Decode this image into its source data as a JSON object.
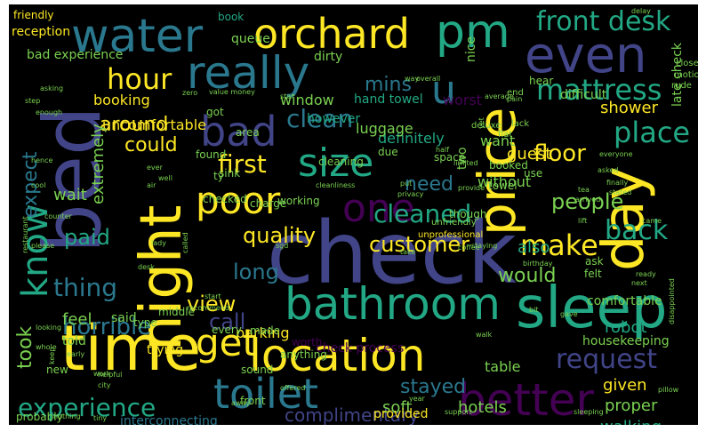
{
  "palette": {
    "background": "#000000",
    "yellow": "#fde725",
    "lightgreen": "#7ad151",
    "green": "#22a884",
    "teal": "#2a788e",
    "blue": "#414487",
    "purple": "#440154"
  },
  "words": [
    {
      "text": "check",
      "color": "#414487"
    },
    {
      "text": "bed",
      "color": "#414487"
    },
    {
      "text": "time",
      "color": "#fde725"
    },
    {
      "text": "night",
      "color": "#fde725"
    },
    {
      "text": "sleep",
      "color": "#22a884"
    },
    {
      "text": "day",
      "color": "#fde725"
    },
    {
      "text": "price",
      "color": "#fde725"
    },
    {
      "text": "bathroom",
      "color": "#22a884"
    },
    {
      "text": "location",
      "color": "#fde725"
    },
    {
      "text": "better",
      "color": "#440154"
    },
    {
      "text": "toilet",
      "color": "#2a788e"
    },
    {
      "text": "even",
      "color": "#414487"
    },
    {
      "text": "water",
      "color": "#2a788e"
    },
    {
      "text": "orchard",
      "color": "#fde725"
    },
    {
      "text": "really",
      "color": "#2a788e"
    },
    {
      "text": "pm",
      "color": "#22a884"
    },
    {
      "text": "bad",
      "color": "#414487"
    },
    {
      "text": "poor",
      "color": "#fde725"
    },
    {
      "text": "size",
      "color": "#22a884"
    },
    {
      "text": "one",
      "color": "#440154"
    },
    {
      "text": "get",
      "color": "#fde725"
    },
    {
      "text": "u",
      "color": "#2a788e"
    },
    {
      "text": "know",
      "color": "#22a884"
    },
    {
      "text": "front desk",
      "color": "#22a884"
    },
    {
      "text": "mattress",
      "color": "#22a884"
    },
    {
      "text": "hour",
      "color": "#fde725"
    },
    {
      "text": "place",
      "color": "#22a884"
    },
    {
      "text": "make",
      "color": "#fde725"
    },
    {
      "text": "back",
      "color": "#22a884"
    },
    {
      "text": "experience",
      "color": "#22a884"
    },
    {
      "text": "request",
      "color": "#414487"
    },
    {
      "text": "first",
      "color": "#fde725"
    },
    {
      "text": "cleaned",
      "color": "#22a884"
    },
    {
      "text": "clean",
      "color": "#2a788e"
    },
    {
      "text": "horrible",
      "color": "#2a788e"
    },
    {
      "text": "thing",
      "color": "#2a788e"
    },
    {
      "text": "customer",
      "color": "#fde725"
    },
    {
      "text": "floor",
      "color": "#fde725"
    },
    {
      "text": "quality",
      "color": "#fde725"
    },
    {
      "text": "long",
      "color": "#2a788e"
    },
    {
      "text": "paid",
      "color": "#22a884"
    },
    {
      "text": "call",
      "color": "#414487"
    },
    {
      "text": "would",
      "color": "#7ad151"
    },
    {
      "text": "view",
      "color": "#fde725"
    },
    {
      "text": "people",
      "color": "#7ad151"
    },
    {
      "text": "stayed",
      "color": "#2a788e"
    },
    {
      "text": "complimentary",
      "color": "#414487"
    },
    {
      "text": "around",
      "color": "#fde725"
    },
    {
      "text": "could",
      "color": "#fde725"
    },
    {
      "text": "expect",
      "color": "#2a788e"
    },
    {
      "text": "need",
      "color": "#2a788e"
    },
    {
      "text": "mins",
      "color": "#2a788e"
    },
    {
      "text": "took",
      "color": "#7ad151"
    },
    {
      "text": "also",
      "color": "#22a884"
    },
    {
      "text": "soft",
      "color": "#7ad151"
    },
    {
      "text": "proper",
      "color": "#7ad151"
    },
    {
      "text": "walking",
      "color": "#22a884"
    },
    {
      "text": "given",
      "color": "#fde725"
    },
    {
      "text": "hotels",
      "color": "#7ad151"
    },
    {
      "text": "robot",
      "color": "#22a884"
    },
    {
      "text": "definitely",
      "color": "#22a884"
    },
    {
      "text": "guest",
      "color": "#fde725"
    },
    {
      "text": "shower",
      "color": "#fde725"
    },
    {
      "text": "wait",
      "color": "#7ad151"
    },
    {
      "text": "luggage",
      "color": "#7ad151"
    },
    {
      "text": "booking",
      "color": "#fde725"
    },
    {
      "text": "uncomfortable",
      "color": "#fde725"
    },
    {
      "text": "bad experience",
      "color": "#7ad151"
    },
    {
      "text": "window",
      "color": "#7ad151"
    },
    {
      "text": "hand towel",
      "color": "#22a884"
    },
    {
      "text": "worst",
      "color": "#440154"
    },
    {
      "text": "however",
      "color": "#22a884"
    },
    {
      "text": "parking",
      "color": "#fde725"
    },
    {
      "text": "feel",
      "color": "#7ad151"
    },
    {
      "text": "said",
      "color": "#7ad151"
    },
    {
      "text": "told",
      "color": "#7ad151"
    },
    {
      "text": "extremely",
      "color": "#7ad151"
    },
    {
      "text": "want",
      "color": "#7ad151"
    },
    {
      "text": "two",
      "color": "#7ad151"
    },
    {
      "text": "without",
      "color": "#7ad151"
    },
    {
      "text": "interconnecting",
      "color": "#2a788e"
    },
    {
      "text": "housekeeping",
      "color": "#7ad151"
    },
    {
      "text": "comfortable",
      "color": "#7ad151"
    },
    {
      "text": "provided",
      "color": "#fde725"
    },
    {
      "text": "table",
      "color": "#7ad151"
    },
    {
      "text": "late check",
      "color": "#7ad151"
    },
    {
      "text": "check process",
      "color": "#440154"
    },
    {
      "text": "reception",
      "color": "#fde725"
    },
    {
      "text": "friendly",
      "color": "#fde725"
    },
    {
      "text": "queue",
      "color": "#7ad151"
    },
    {
      "text": "book",
      "color": "#22a884"
    },
    {
      "text": "dirty",
      "color": "#7ad151"
    },
    {
      "text": "nice",
      "color": "#7ad151"
    },
    {
      "text": "difficult",
      "color": "#7ad151"
    },
    {
      "text": "hear",
      "color": "#7ad151"
    },
    {
      "text": "ty",
      "color": "#7ad151"
    },
    {
      "text": "checked",
      "color": "#7ad151"
    },
    {
      "text": "charge",
      "color": "#7ad151"
    },
    {
      "text": "working",
      "color": "#7ad151"
    },
    {
      "text": "sink",
      "color": "#7ad151"
    },
    {
      "text": "found",
      "color": "#7ad151"
    },
    {
      "text": "got",
      "color": "#7ad151"
    },
    {
      "text": "area",
      "color": "#7ad151"
    },
    {
      "text": "cleaning",
      "color": "#7ad151"
    },
    {
      "text": "space",
      "color": "#7ad151"
    },
    {
      "text": "due",
      "color": "#7ad151"
    },
    {
      "text": "booked",
      "color": "#7ad151"
    },
    {
      "text": "towel",
      "color": "#7ad151"
    },
    {
      "text": "though",
      "color": "#7ad151"
    },
    {
      "text": "use",
      "color": "#7ad151"
    },
    {
      "text": "ask",
      "color": "#7ad151"
    },
    {
      "text": "felt",
      "color": "#7ad151"
    },
    {
      "text": "type",
      "color": "#7ad151"
    },
    {
      "text": "middle",
      "color": "#7ad151"
    },
    {
      "text": "every",
      "color": "#7ad151"
    },
    {
      "text": "made",
      "color": "#7ad151"
    },
    {
      "text": "worth",
      "color": "#440154"
    },
    {
      "text": "anything",
      "color": "#7ad151"
    },
    {
      "text": "trying",
      "color": "#fde725"
    },
    {
      "text": "sound",
      "color": "#7ad151"
    },
    {
      "text": "front",
      "color": "#7ad151"
    },
    {
      "text": "new",
      "color": "#7ad151"
    },
    {
      "text": "probably",
      "color": "#7ad151"
    },
    {
      "text": "lack",
      "color": "#7ad151"
    },
    {
      "text": "flat",
      "color": "#7ad151"
    },
    {
      "text": "deluxe",
      "color": "#7ad151"
    },
    {
      "text": "end",
      "color": "#7ad151"
    },
    {
      "text": "close",
      "color": "#7ad151"
    },
    {
      "text": "motion",
      "color": "#7ad151"
    },
    {
      "text": "rude",
      "color": "#7ad151"
    },
    {
      "text": "delay",
      "color": "#7ad151"
    },
    {
      "text": "value money",
      "color": "#7ad151"
    },
    {
      "text": "zero",
      "color": "#7ad151"
    },
    {
      "text": "overall",
      "color": "#7ad151"
    },
    {
      "text": "way",
      "color": "#7ad151"
    },
    {
      "text": "asking",
      "color": "#7ad151"
    },
    {
      "text": "enough",
      "color": "#7ad151"
    },
    {
      "text": "step",
      "color": "#7ad151"
    },
    {
      "text": "star",
      "color": "#7ad151"
    },
    {
      "text": "pain",
      "color": "#7ad151"
    },
    {
      "text": "half",
      "color": "#7ad151"
    },
    {
      "text": "limited",
      "color": "#7ad151"
    },
    {
      "text": "yet",
      "color": "#7ad151"
    },
    {
      "text": "average",
      "color": "#7ad151"
    },
    {
      "text": "everyone",
      "color": "#7ad151"
    },
    {
      "text": "finally",
      "color": "#7ad151"
    },
    {
      "text": "asked",
      "color": "#7ad151"
    },
    {
      "text": "tea",
      "color": "#7ad151"
    },
    {
      "text": "stated",
      "color": "#7ad151"
    },
    {
      "text": "arrived",
      "color": "#7ad151"
    },
    {
      "text": "lift",
      "color": "#7ad151"
    },
    {
      "text": "came",
      "color": "#7ad151"
    },
    {
      "text": "next",
      "color": "#7ad151"
    },
    {
      "text": "birthday",
      "color": "#7ad151"
    },
    {
      "text": "ready",
      "color": "#7ad151"
    },
    {
      "text": "disappointed",
      "color": "#7ad151"
    },
    {
      "text": "bit",
      "color": "#7ad151"
    },
    {
      "text": "gave",
      "color": "#7ad151"
    },
    {
      "text": "pillow",
      "color": "#7ad151"
    },
    {
      "text": "staying",
      "color": "#7ad151"
    },
    {
      "text": "coffee",
      "color": "#7ad151"
    },
    {
      "text": "unprofessional",
      "color": "#fde725"
    },
    {
      "text": "unfriendly",
      "color": "#7ad151"
    },
    {
      "text": "provide",
      "color": "#7ad151"
    },
    {
      "text": "put",
      "color": "#7ad151"
    },
    {
      "text": "privacy",
      "color": "#7ad151"
    },
    {
      "text": "cleanliness",
      "color": "#7ad151"
    },
    {
      "text": "ever",
      "color": "#7ad151"
    },
    {
      "text": "recommend",
      "color": "#7ad151"
    },
    {
      "text": "start",
      "color": "#7ad151"
    },
    {
      "text": "sgd",
      "color": "#7ad151"
    },
    {
      "text": "walk",
      "color": "#7ad151"
    },
    {
      "text": "desk",
      "color": "#7ad151"
    },
    {
      "text": "lady",
      "color": "#7ad151"
    },
    {
      "text": "well",
      "color": "#7ad151"
    },
    {
      "text": "air",
      "color": "#7ad151"
    },
    {
      "text": "please",
      "color": "#7ad151"
    },
    {
      "text": "called",
      "color": "#7ad151"
    },
    {
      "text": "restaurant",
      "color": "#7ad151"
    },
    {
      "text": "hence",
      "color": "#7ad151"
    },
    {
      "text": "counter",
      "color": "#7ad151"
    },
    {
      "text": "cool",
      "color": "#7ad151"
    },
    {
      "text": "looking",
      "color": "#7ad151"
    },
    {
      "text": "whole",
      "color": "#7ad151"
    },
    {
      "text": "early",
      "color": "#7ad151"
    },
    {
      "text": "keep",
      "color": "#7ad151"
    },
    {
      "text": "work",
      "color": "#7ad151"
    },
    {
      "text": "city",
      "color": "#7ad151"
    },
    {
      "text": "helpful",
      "color": "#7ad151"
    },
    {
      "text": "offered",
      "color": "#7ad151"
    },
    {
      "text": "nothing",
      "color": "#7ad151"
    },
    {
      "text": "away",
      "color": "#7ad151"
    },
    {
      "text": "tiny",
      "color": "#7ad151"
    },
    {
      "text": "year",
      "color": "#7ad151"
    },
    {
      "text": "support",
      "color": "#7ad151"
    },
    {
      "text": "sleeping",
      "color": "#7ad151"
    },
    {
      "text": "take",
      "color": "#7ad151"
    }
  ]
}
